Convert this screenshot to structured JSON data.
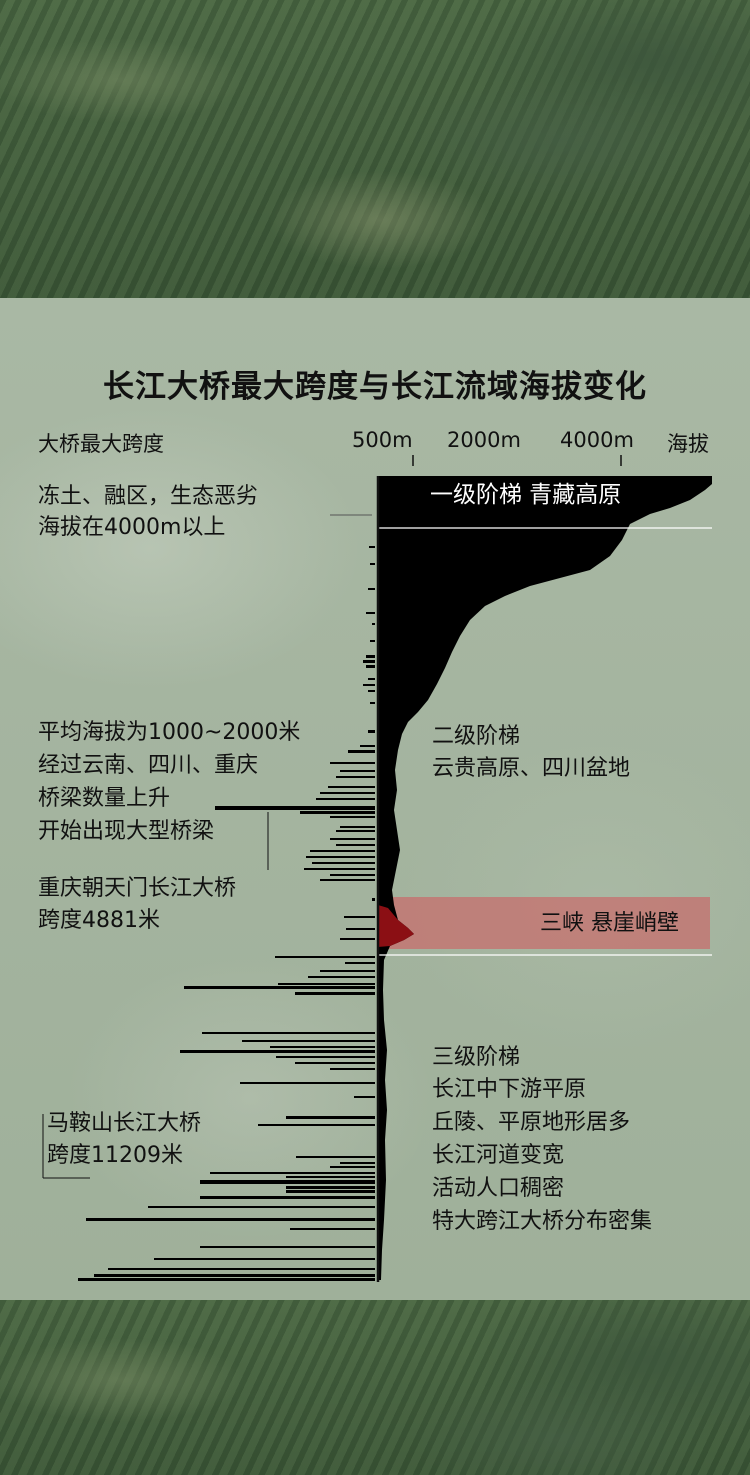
{
  "chart_data": {
    "type": "bar",
    "title": "长江大桥最大跨度与长江流域海拔变化",
    "left_axis_label": "大桥最大跨度",
    "right_axis_label": "海拔",
    "elevation_ticks": [
      "500m",
      "2000m",
      "4000m"
    ],
    "annotations_left": {
      "a1": [
        "冻土、融区，生态恶劣",
        "海拔在4000m以上"
      ],
      "a2": [
        "平均海拔为1000~2000米",
        "经过云南、四川、重庆",
        "桥梁数量上升",
        "开始出现大型桥梁"
      ],
      "a3": [
        "重庆朝天门长江大桥",
        "跨度4881米"
      ],
      "a4": [
        "马鞍山长江大桥",
        "跨度11209米"
      ]
    },
    "annotations_right": {
      "tier1": "一级阶梯  青藏高原",
      "tier2": [
        "二级阶梯",
        "云贵高原、四川盆地"
      ],
      "gorge": "三峡  悬崖峭壁",
      "tier3": [
        "三级阶梯",
        "长江中下游平原",
        "丘陵、平原地形居多",
        "长江河道变宽",
        "活动人口稠密",
        "特大跨江大桥分布密集"
      ]
    },
    "colors": {
      "bars": "#000000",
      "gorge_band": "#c96a6a",
      "gorge_fill": "#8b0f14"
    }
  }
}
